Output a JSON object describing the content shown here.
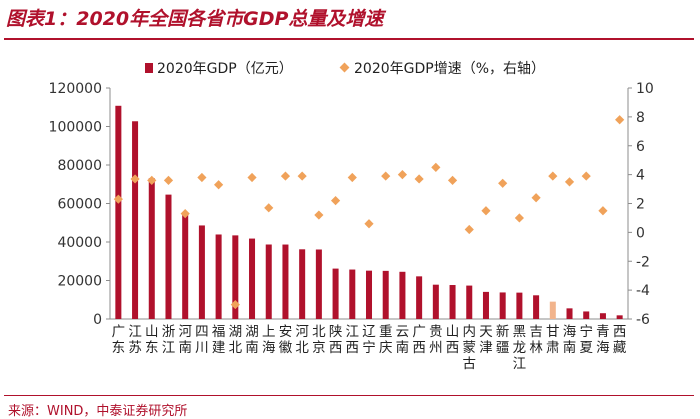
{
  "title": "图表1：2020年全国各省市GDP总量及增速",
  "source": "来源：WIND，中泰证券研究所",
  "colors": {
    "bar": "#b0112c",
    "bar_highlight": "#f2b48c",
    "marker": "#f0a25a",
    "axis": "#8c8c8c",
    "accent": "#b0112c"
  },
  "chart_data": {
    "type": "bar",
    "title": "2020年全国各省市GDP总量及增速",
    "legend": {
      "placement": "top",
      "gdp": "2020年GDP（亿元）",
      "growth": "2020年GDP增速（%，右轴）"
    },
    "categories": [
      "广东",
      "江苏",
      "山东",
      "浙江",
      "河南",
      "四川",
      "福建",
      "湖北",
      "湖南",
      "上海",
      "安徽",
      "河北",
      "北京",
      "陕西",
      "江西",
      "辽宁",
      "重庆",
      "云南",
      "广西",
      "贵州",
      "山西",
      "内蒙古",
      "天津",
      "新疆",
      "黑龙江",
      "吉林",
      "甘肃",
      "海南",
      "宁夏",
      "青海",
      "西藏"
    ],
    "series": [
      {
        "name": "2020年GDP（亿元）",
        "axis": "left",
        "type": "bar",
        "values": [
          110761,
          102719,
          73129,
          64613,
          54997,
          48599,
          43904,
          43443,
          41782,
          38701,
          38681,
          36207,
          36103,
          26182,
          25692,
          25115,
          25003,
          24522,
          22157,
          17827,
          17652,
          17360,
          14084,
          13798,
          13699,
          12311,
          9017,
          5532,
          3921,
          3006,
          1903
        ]
      },
      {
        "name": "2020年GDP增速（%，右轴）",
        "axis": "right",
        "type": "scatter",
        "values": [
          2.3,
          3.7,
          3.6,
          3.6,
          1.3,
          3.8,
          3.3,
          -5.0,
          3.8,
          1.7,
          3.9,
          3.9,
          1.2,
          2.2,
          3.8,
          0.6,
          3.9,
          4.0,
          3.7,
          4.5,
          3.6,
          0.2,
          1.5,
          3.4,
          1.0,
          2.4,
          3.9,
          3.5,
          3.9,
          1.5,
          7.8
        ]
      }
    ],
    "highlight_category": "甘肃",
    "ylim_left": [
      0,
      120000
    ],
    "ylim_right": [
      -6,
      10
    ],
    "left_ticks": [
      "0",
      "20000",
      "40000",
      "60000",
      "80000",
      "100000",
      "120000"
    ],
    "right_ticks": [
      "-6",
      "-4",
      "-2",
      "0",
      "2",
      "4",
      "6",
      "8",
      "10"
    ],
    "grid": false
  }
}
